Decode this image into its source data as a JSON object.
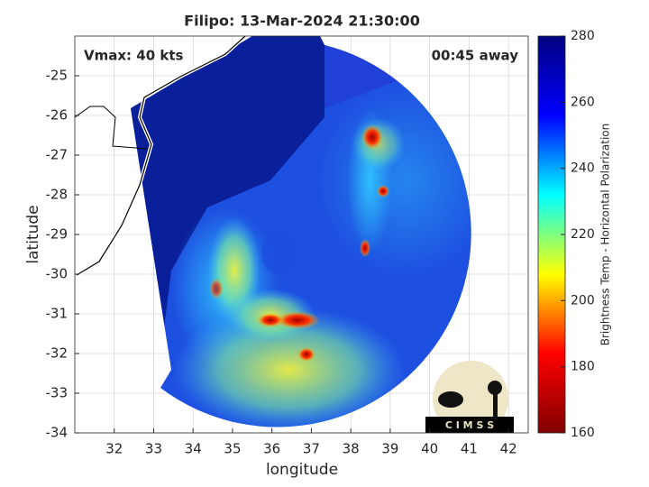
{
  "chart_data": {
    "type": "image",
    "title": "Filipo: 13-Mar-2024 21:30:00",
    "xlabel": "longitude",
    "ylabel": "latitude",
    "xlim": [
      31,
      42.5
    ],
    "ylim": [
      -34,
      -24
    ],
    "xticks": [
      32,
      33,
      34,
      35,
      36,
      37,
      38,
      39,
      40,
      41,
      42
    ],
    "yticks": [
      -34,
      -33,
      -32,
      -31,
      -30,
      -29,
      -28,
      -27,
      -26,
      -25
    ],
    "grid": true,
    "annotations": [
      "Vmax: 40 kts",
      "00:45 away"
    ],
    "logo": "C I M S S",
    "colorbar": {
      "label": "Brightness Temp - Horizontal Polarization",
      "lim": [
        160,
        280
      ],
      "ticks": [
        160,
        180,
        200,
        220,
        240,
        260,
        280
      ],
      "colormap": [
        "#800000",
        "#ff0000",
        "#ffff00",
        "#00ffff",
        "#0000ff",
        "#000080"
      ]
    }
  }
}
